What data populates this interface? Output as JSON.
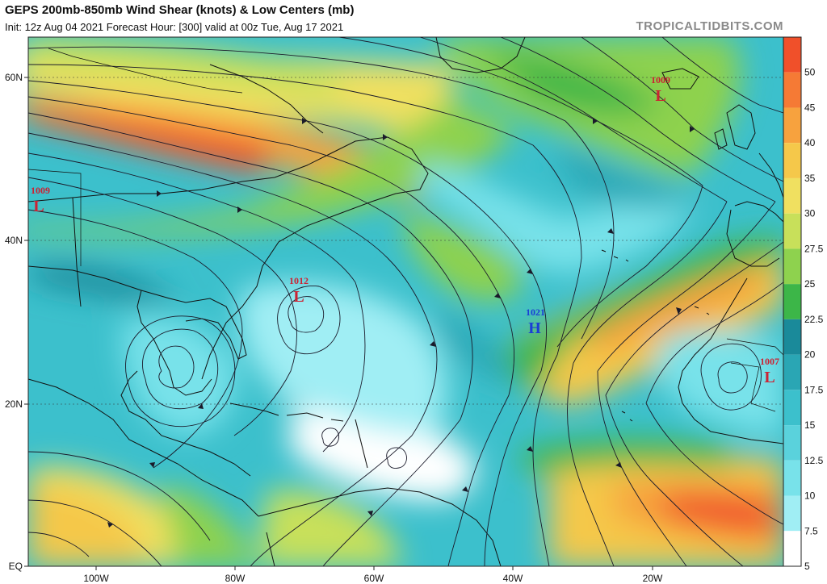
{
  "header": {
    "title": "GEPS 200mb-850mb Wind Shear (knots) & Low Centers (mb)",
    "subtitle": "Init: 12z Aug 04 2021   Forecast Hour: [300]   valid at 00z Tue, Aug 17 2021",
    "brand": "TROPICALTIDBITS.COM"
  },
  "map": {
    "lat_labels": [
      "60N",
      "40N",
      "20N",
      "EQ"
    ],
    "lon_labels": [
      "100W",
      "80W",
      "60W",
      "40W",
      "20W"
    ]
  },
  "colorbar": {
    "labels": [
      "50",
      "45",
      "40",
      "35",
      "30",
      "27.5",
      "25",
      "22.5",
      "20",
      "17.5",
      "15",
      "12.5",
      "10",
      "7.5",
      "5"
    ],
    "colors": [
      "#f0502a",
      "#f57a35",
      "#f7a23e",
      "#f5c84a",
      "#f0e060",
      "#c8e05a",
      "#8ed24e",
      "#3cb648",
      "#1a8a9a",
      "#2aa6b4",
      "#3cc0cc",
      "#5ad2dc",
      "#78e2ea",
      "#a0eef4",
      "#ffffff"
    ]
  },
  "centers": [
    {
      "id": "low-canada",
      "type": "L",
      "value": "1009",
      "color": "#cc2233"
    },
    {
      "id": "low-northatlantic",
      "type": "L",
      "value": "1009",
      "color": "#cc2233"
    },
    {
      "id": "low-westatlantic",
      "type": "L",
      "value": "1012",
      "color": "#cc2233"
    },
    {
      "id": "high-centralatlantic",
      "type": "H",
      "value": "1021",
      "color": "#1a3fd6"
    },
    {
      "id": "low-africa",
      "type": "L",
      "value": "1007",
      "color": "#cc2233"
    }
  ]
}
